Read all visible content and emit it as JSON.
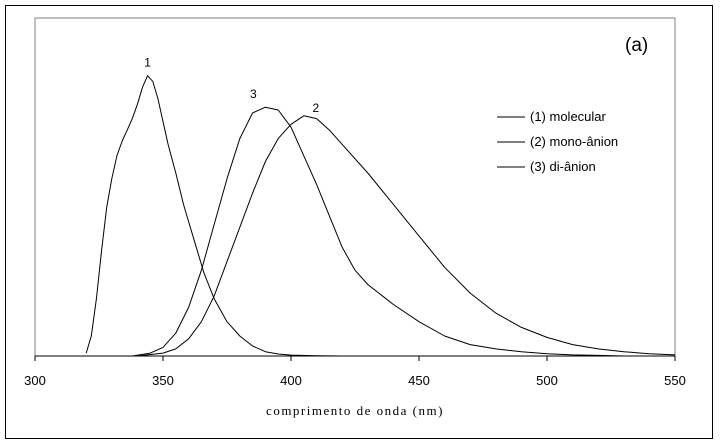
{
  "chart_data": {
    "type": "line",
    "panel_label": "(a)",
    "xlabel": "comprimento de onda (nm)",
    "ylabel": "",
    "xlim": [
      300,
      550
    ],
    "ylim": [
      0,
      1.0
    ],
    "x_ticks": [
      300,
      350,
      400,
      450,
      500,
      550
    ],
    "grid": false,
    "legend_position": "right",
    "series": [
      {
        "name": "(1) molecular",
        "peak_label": "1",
        "color": "#000000",
        "x": [
          320,
          322,
          324,
          326,
          328,
          330,
          332,
          334,
          336,
          338,
          340,
          342,
          344,
          346,
          348,
          350,
          352,
          355,
          358,
          360,
          363,
          366,
          370,
          375,
          380,
          385,
          390,
          395,
          400,
          410,
          420,
          430
        ],
        "y": [
          0.01,
          0.07,
          0.2,
          0.37,
          0.52,
          0.62,
          0.7,
          0.75,
          0.79,
          0.83,
          0.88,
          0.94,
          0.98,
          0.96,
          0.9,
          0.82,
          0.74,
          0.64,
          0.53,
          0.47,
          0.38,
          0.29,
          0.2,
          0.12,
          0.07,
          0.035,
          0.015,
          0.007,
          0.003,
          0.001,
          0.0,
          0.0
        ]
      },
      {
        "name": "(2) mono-ânion",
        "peak_label": "2",
        "color": "#000000",
        "x": [
          340,
          350,
          355,
          360,
          365,
          370,
          375,
          380,
          385,
          390,
          395,
          400,
          405,
          410,
          415,
          420,
          430,
          440,
          450,
          460,
          470,
          480,
          490,
          500,
          510,
          520,
          530,
          540,
          550
        ],
        "y": [
          0.0,
          0.01,
          0.025,
          0.06,
          0.12,
          0.21,
          0.33,
          0.45,
          0.57,
          0.68,
          0.76,
          0.81,
          0.84,
          0.83,
          0.79,
          0.74,
          0.64,
          0.53,
          0.42,
          0.31,
          0.22,
          0.15,
          0.1,
          0.065,
          0.04,
          0.025,
          0.015,
          0.008,
          0.004
        ]
      },
      {
        "name": "(3) di-ânion",
        "peak_label": "3",
        "color": "#000000",
        "x": [
          338,
          345,
          350,
          355,
          360,
          365,
          370,
          375,
          380,
          385,
          390,
          395,
          400,
          405,
          410,
          415,
          420,
          425,
          430,
          440,
          450,
          460,
          470,
          480,
          490,
          500,
          510,
          520,
          530
        ],
        "y": [
          0.0,
          0.01,
          0.03,
          0.08,
          0.17,
          0.3,
          0.46,
          0.62,
          0.76,
          0.85,
          0.87,
          0.86,
          0.8,
          0.7,
          0.6,
          0.49,
          0.38,
          0.3,
          0.25,
          0.18,
          0.12,
          0.07,
          0.04,
          0.025,
          0.015,
          0.008,
          0.004,
          0.002,
          0.0
        ]
      }
    ]
  }
}
